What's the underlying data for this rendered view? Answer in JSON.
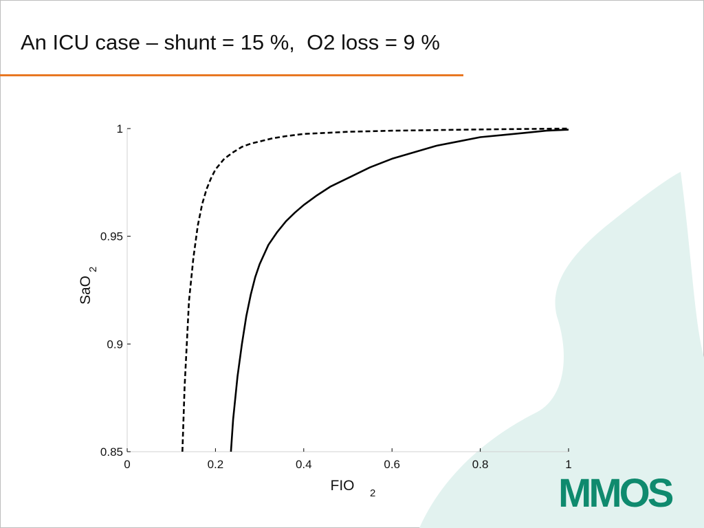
{
  "slide": {
    "title": "An ICU case – shunt = 15 %,  O2 loss = 9 %",
    "accent_color": "#e87722",
    "decor_color": "#e2f2ef",
    "logo_text": "MMOS",
    "logo_color": "#0f8a6e"
  },
  "chart_data": {
    "type": "line",
    "xlabel": "FIO",
    "xlabel_sub": "2",
    "ylabel": "SaO",
    "ylabel_sub": "2",
    "xlim": [
      0,
      1
    ],
    "ylim": [
      0.85,
      1
    ],
    "xticks": [
      0,
      0.2,
      0.4,
      0.6,
      0.8,
      1
    ],
    "yticks": [
      0.85,
      0.9,
      0.95,
      1
    ],
    "grid": false,
    "series": [
      {
        "style": "dashed",
        "color": "#000000",
        "x": [
          0.125,
          0.13,
          0.135,
          0.14,
          0.15,
          0.16,
          0.17,
          0.18,
          0.19,
          0.2,
          0.22,
          0.24,
          0.26,
          0.28,
          0.3,
          0.33,
          0.36,
          0.4,
          0.45,
          0.5,
          0.6,
          0.7,
          0.8,
          0.9,
          1.0
        ],
        "y": [
          0.85,
          0.88,
          0.9,
          0.92,
          0.94,
          0.955,
          0.965,
          0.972,
          0.977,
          0.981,
          0.986,
          0.989,
          0.9915,
          0.993,
          0.994,
          0.9955,
          0.9965,
          0.9975,
          0.998,
          0.9985,
          0.999,
          0.9993,
          0.9996,
          0.9998,
          1.0
        ]
      },
      {
        "style": "solid",
        "color": "#000000",
        "x": [
          0.235,
          0.24,
          0.25,
          0.26,
          0.27,
          0.28,
          0.29,
          0.3,
          0.32,
          0.34,
          0.36,
          0.38,
          0.4,
          0.43,
          0.46,
          0.5,
          0.55,
          0.6,
          0.65,
          0.7,
          0.75,
          0.8,
          0.85,
          0.9,
          0.95,
          1.0
        ],
        "y": [
          0.85,
          0.865,
          0.885,
          0.9,
          0.913,
          0.923,
          0.931,
          0.937,
          0.946,
          0.952,
          0.957,
          0.961,
          0.9645,
          0.969,
          0.973,
          0.977,
          0.982,
          0.986,
          0.989,
          0.992,
          0.994,
          0.996,
          0.997,
          0.998,
          0.999,
          0.9995
        ]
      }
    ]
  }
}
